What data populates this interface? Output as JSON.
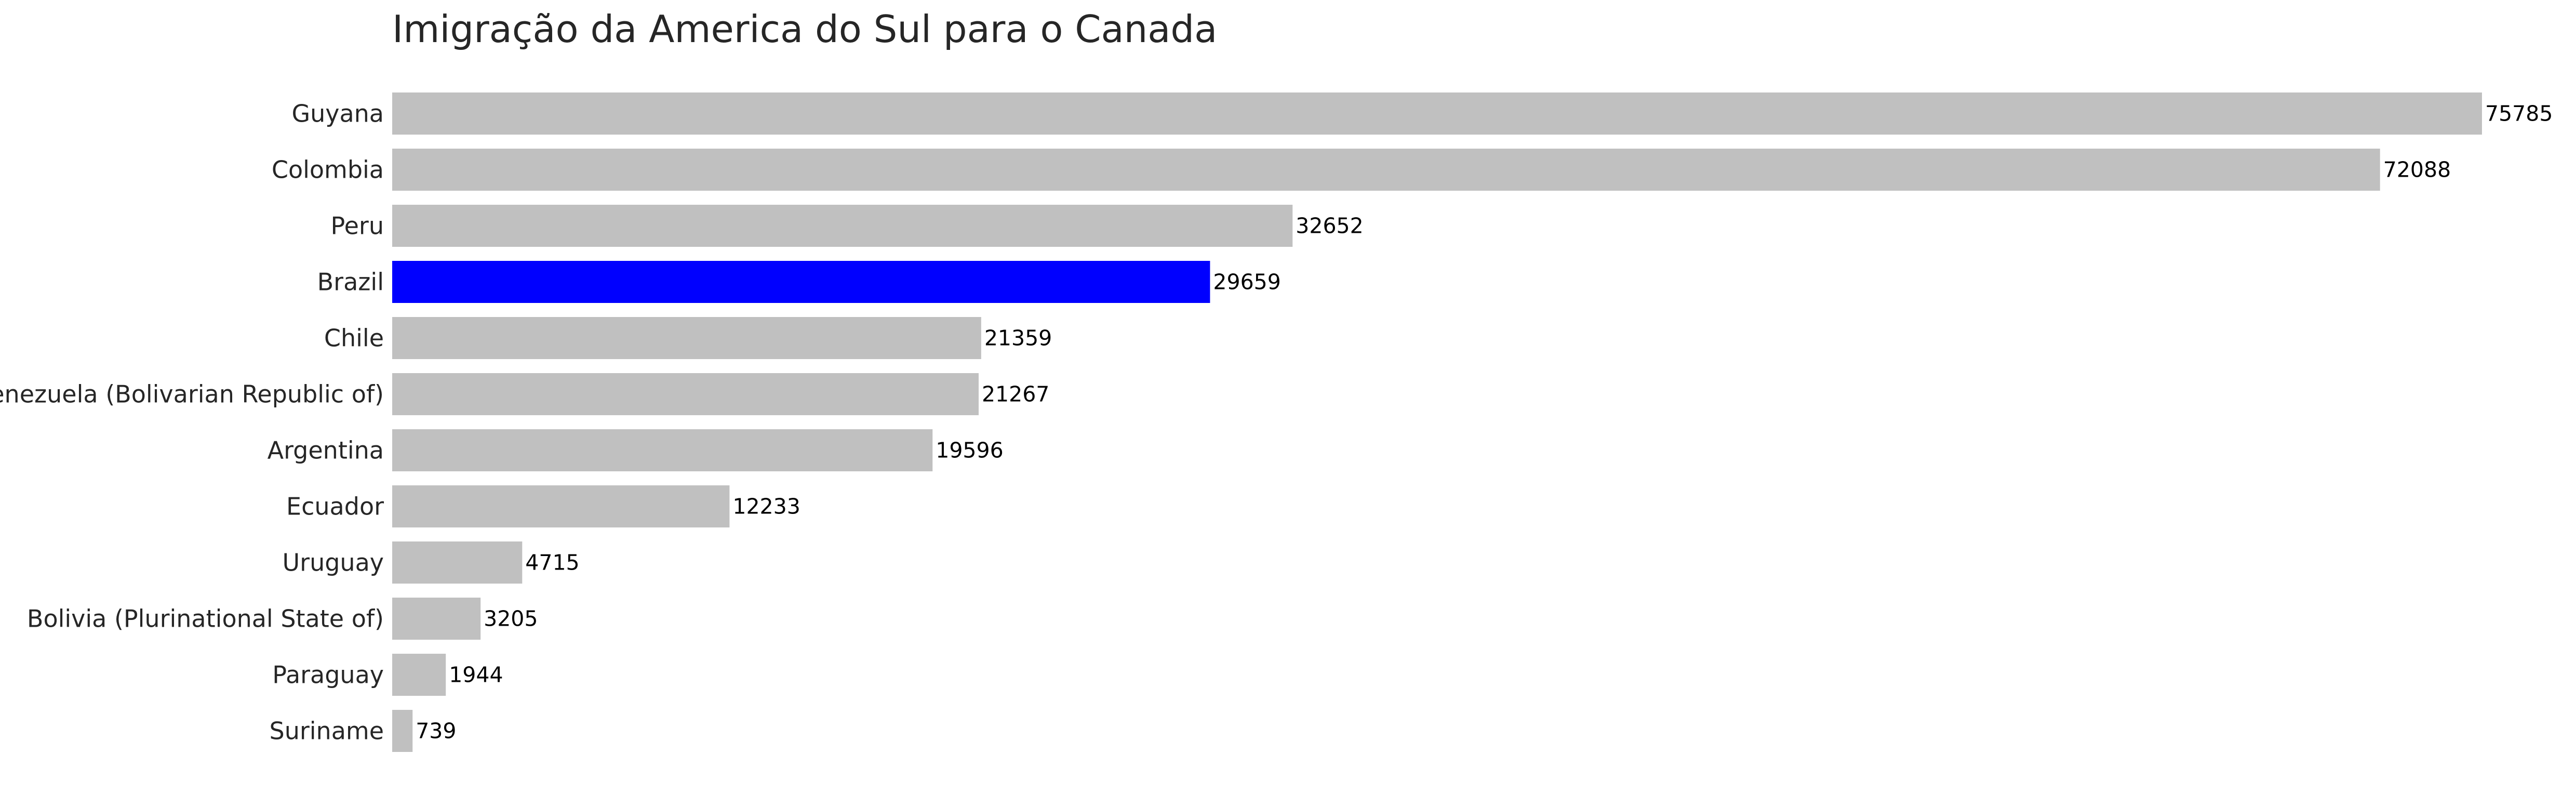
{
  "chart_data": {
    "type": "bar",
    "orientation": "horizontal",
    "title": "Imigração da America do Sul para o Canada",
    "xlabel": "",
    "ylabel": "",
    "grid": false,
    "legend": "none",
    "categories": [
      "Guyana",
      "Colombia",
      "Peru",
      "Brazil",
      "Chile",
      "Venezuela (Bolivarian Republic of)",
      "Argentina",
      "Ecuador",
      "Uruguay",
      "Bolivia (Plurinational State of)",
      "Paraguay",
      "Suriname"
    ],
    "values": [
      75785,
      72088,
      32652,
      29659,
      21359,
      21267,
      19596,
      12233,
      4715,
      3205,
      1944,
      739
    ],
    "value_labels": [
      "75785",
      "72088",
      "32652",
      "29659",
      "21359",
      "21267",
      "19596",
      "12233",
      "4715",
      "3205",
      "1944",
      "739"
    ],
    "highlight": "Brazil",
    "colors": {
      "default": "#c0c0c0",
      "highlight": "#0000ff"
    }
  }
}
